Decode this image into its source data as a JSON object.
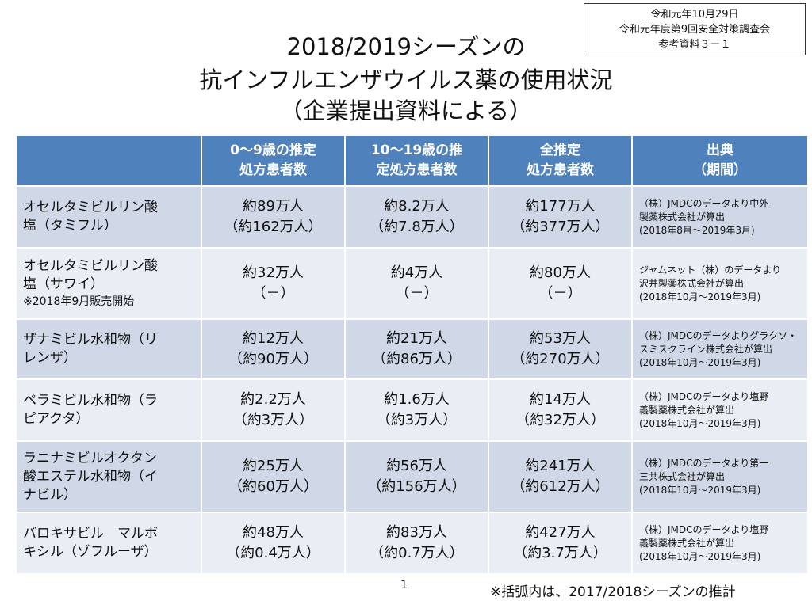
{
  "stamp": {
    "line1": "令和元年10月29日",
    "line2": "令和元年度第9回安全対策調査会",
    "line3": "参考資料３－１"
  },
  "title": {
    "line1": "2018/2019シーズンの",
    "line2": "抗インフルエンザウイルス薬の使用状況",
    "line3": "（企業提出資料による）"
  },
  "table": {
    "headers": [
      {
        "line1": "",
        "line2": ""
      },
      {
        "line1": "0～9歳の推定",
        "line2": "処方患者数"
      },
      {
        "line1": "10～19歳の推",
        "line2": "定処方患者数"
      },
      {
        "line1": "全推定",
        "line2": "処方患者数"
      },
      {
        "line1": "出典",
        "line2": "（期間）"
      }
    ],
    "rows": [
      {
        "drug": [
          "オセルタミビルリン酸",
          "塩（タミフル）"
        ],
        "note": "",
        "age0_9": [
          "約89万人",
          "（約162万人）"
        ],
        "age10_19": [
          "約8.2万人",
          "（約7.8万人）"
        ],
        "total": [
          "約177万人",
          "（約377万人）"
        ],
        "source": [
          "（株）JMDCのデータより中外",
          "製薬株式会社が算出",
          "(2018年8月～2019年3月)"
        ]
      },
      {
        "drug": [
          "オセルタミビルリン酸",
          "塩（サワイ）"
        ],
        "note": "※2018年9月販売開始",
        "age0_9": [
          "約32万人",
          "（－）"
        ],
        "age10_19": [
          "約4万人",
          "（－）"
        ],
        "total": [
          "約80万人",
          "（－）"
        ],
        "source": [
          "ジャムネット（株）のデータより",
          "沢井製薬株式会社が算出",
          "(2018年10月～2019年3月)"
        ]
      },
      {
        "drug": [
          "ザナミビル水和物（リ",
          "レンザ）"
        ],
        "note": "",
        "age0_9": [
          "約12万人",
          "（約90万人）"
        ],
        "age10_19": [
          "約21万人",
          "（約86万人）"
        ],
        "total": [
          "約53万人",
          "（約270万人）"
        ],
        "source": [
          "（株）JMDCのデータよりグラクソ・",
          "スミスクライン株式会社が算出",
          "(2018年10月～2019年3月)"
        ]
      },
      {
        "drug": [
          "ペラミビル水和物（ラ",
          "ピアクタ）"
        ],
        "note": "",
        "age0_9": [
          "約2.2万人",
          "（約3万人）"
        ],
        "age10_19": [
          "約1.6万人",
          "（約3万人）"
        ],
        "total": [
          "約14万人",
          "（約32万人）"
        ],
        "source": [
          "（株）JMDCのデータより塩野",
          "義製薬株式会社が算出",
          "(2018年10月～2019年3月)"
        ]
      },
      {
        "drug": [
          "ラニナミビルオクタン",
          "酸エステル水和物（イ",
          "ナビル）"
        ],
        "note": "",
        "age0_9": [
          "約25万人",
          "（約60万人）"
        ],
        "age10_19": [
          "約56万人",
          "（約156万人）"
        ],
        "total": [
          "約241万人",
          "（約612万人）"
        ],
        "source": [
          "（株）JMDCのデータより第一",
          "三共株式会社が算出",
          "(2018年10月～2019年3月)"
        ]
      },
      {
        "drug": [
          "バロキサビル　マルボ",
          "キシル（ゾフルーザ）"
        ],
        "note": "",
        "age0_9": [
          "約48万人",
          "（約0.4万人）"
        ],
        "age10_19": [
          "約83万人",
          "（約0.7万人）"
        ],
        "total": [
          "約427万人",
          "（約3.7万人）"
        ],
        "source": [
          "（株）JMDCのデータより塩野",
          "義製薬株式会社が算出",
          "(2018年10月～2019年3月)"
        ]
      }
    ]
  },
  "page_number": "1",
  "footnote": "※括弧内は、2017/2018シーズンの推計"
}
